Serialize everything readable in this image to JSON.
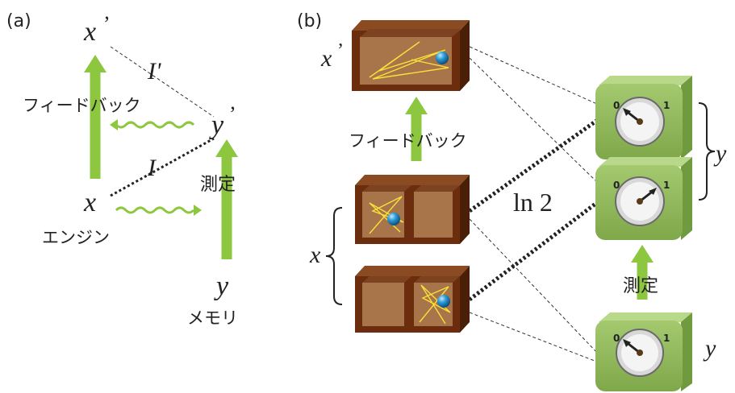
{
  "panel_a": {
    "label": "(a)",
    "x_prime": "x",
    "y_prime": "y",
    "prime_mark": "’",
    "x": "x",
    "y": "y",
    "I_prime": "I'",
    "I": "I",
    "feedback": "フィードバック",
    "measure": "測定",
    "engine": "エンジン",
    "memory": "メモリ"
  },
  "panel_b": {
    "label": "(b)",
    "x_prime": "x",
    "prime_mark": "’",
    "feedback": "フィードバック",
    "x_brace_label": "x",
    "ln2": "ln 2",
    "y_brace_label": "y",
    "measure": "測定",
    "y_bottom": "y",
    "dial_zero": "0",
    "dial_one": "1"
  },
  "colors": {
    "arrow_green": "#8dc63f",
    "box_brown": "#6b2d0e",
    "box_inner": "#a8744a",
    "ball_blue": "#1f8fc7",
    "trace_yellow": "#f7e13a",
    "meter_green": "#8fb85a"
  }
}
